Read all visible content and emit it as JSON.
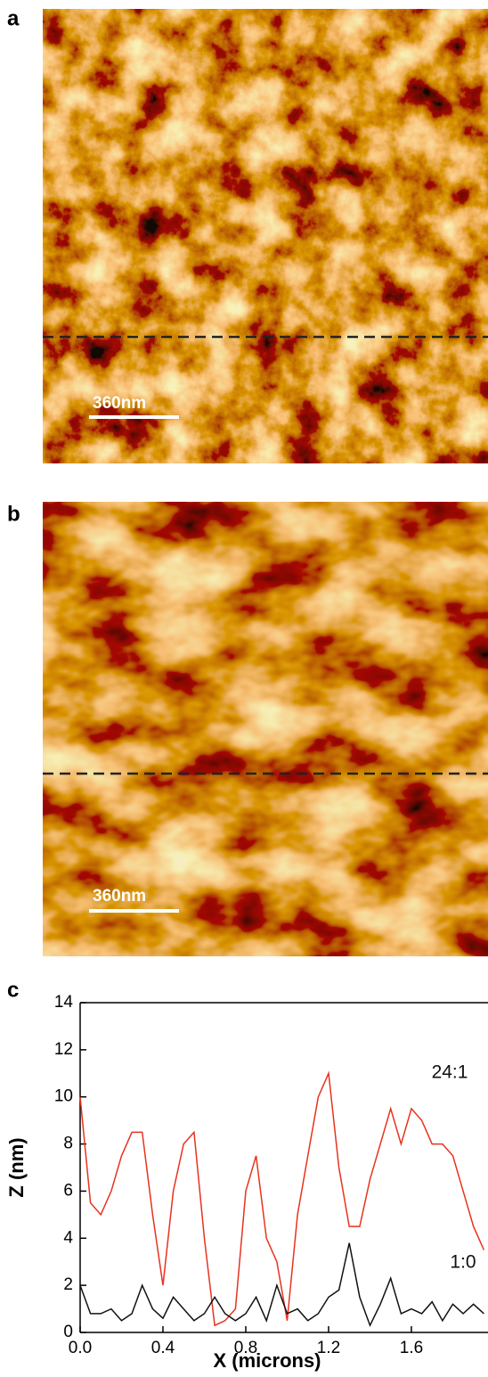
{
  "panels": [
    {
      "label": "a",
      "scale_bar": "360nm"
    },
    {
      "label": "b",
      "scale_bar": "360nm"
    },
    {
      "label": "c"
    }
  ],
  "chart_data": {
    "type": "line",
    "xlabel": "X (microns)",
    "ylabel": "Z (nm)",
    "x": [
      0,
      0.05,
      0.1,
      0.15,
      0.2,
      0.25,
      0.3,
      0.35,
      0.4,
      0.45,
      0.5,
      0.55,
      0.6,
      0.65,
      0.7,
      0.75,
      0.8,
      0.85,
      0.9,
      0.95,
      1.0,
      1.05,
      1.1,
      1.15,
      1.2,
      1.25,
      1.3,
      1.35,
      1.4,
      1.45,
      1.5,
      1.55,
      1.6,
      1.65,
      1.7,
      1.75,
      1.8,
      1.85,
      1.9,
      1.95
    ],
    "series": [
      {
        "name": "24:1",
        "color": "#e8321e",
        "values": [
          10,
          5.5,
          5,
          6,
          7.5,
          8.5,
          8.5,
          5,
          2,
          6,
          8,
          8.5,
          4,
          0.3,
          0.5,
          1,
          6,
          7.5,
          4,
          3,
          0.5,
          5,
          7.5,
          10,
          11,
          7,
          4.5,
          4.5,
          6.5,
          8,
          9.5,
          8,
          9.5,
          9,
          8,
          8,
          7.5,
          6,
          4.5,
          3.5
        ]
      },
      {
        "name": "1:0",
        "color": "#111111",
        "values": [
          2,
          0.8,
          0.8,
          1,
          0.5,
          0.8,
          2,
          1,
          0.6,
          1.5,
          1,
          0.5,
          0.8,
          1.5,
          0.8,
          0.5,
          0.8,
          1.5,
          0.5,
          2,
          0.8,
          1,
          0.5,
          0.8,
          1.5,
          1.8,
          3.8,
          1.5,
          0.3,
          1.2,
          2.3,
          0.8,
          1,
          0.8,
          1.3,
          0.5,
          1.2,
          0.8,
          1.2,
          0.8
        ]
      }
    ],
    "xlim": [
      0,
      1.97
    ],
    "ylim": [
      0,
      14
    ],
    "xticks": [
      {
        "value": 0,
        "label": "0.0"
      },
      0.4,
      0.8,
      1.2,
      1.6
    ],
    "yticks": [
      0,
      2,
      4,
      6,
      8,
      10,
      12,
      14
    ]
  }
}
